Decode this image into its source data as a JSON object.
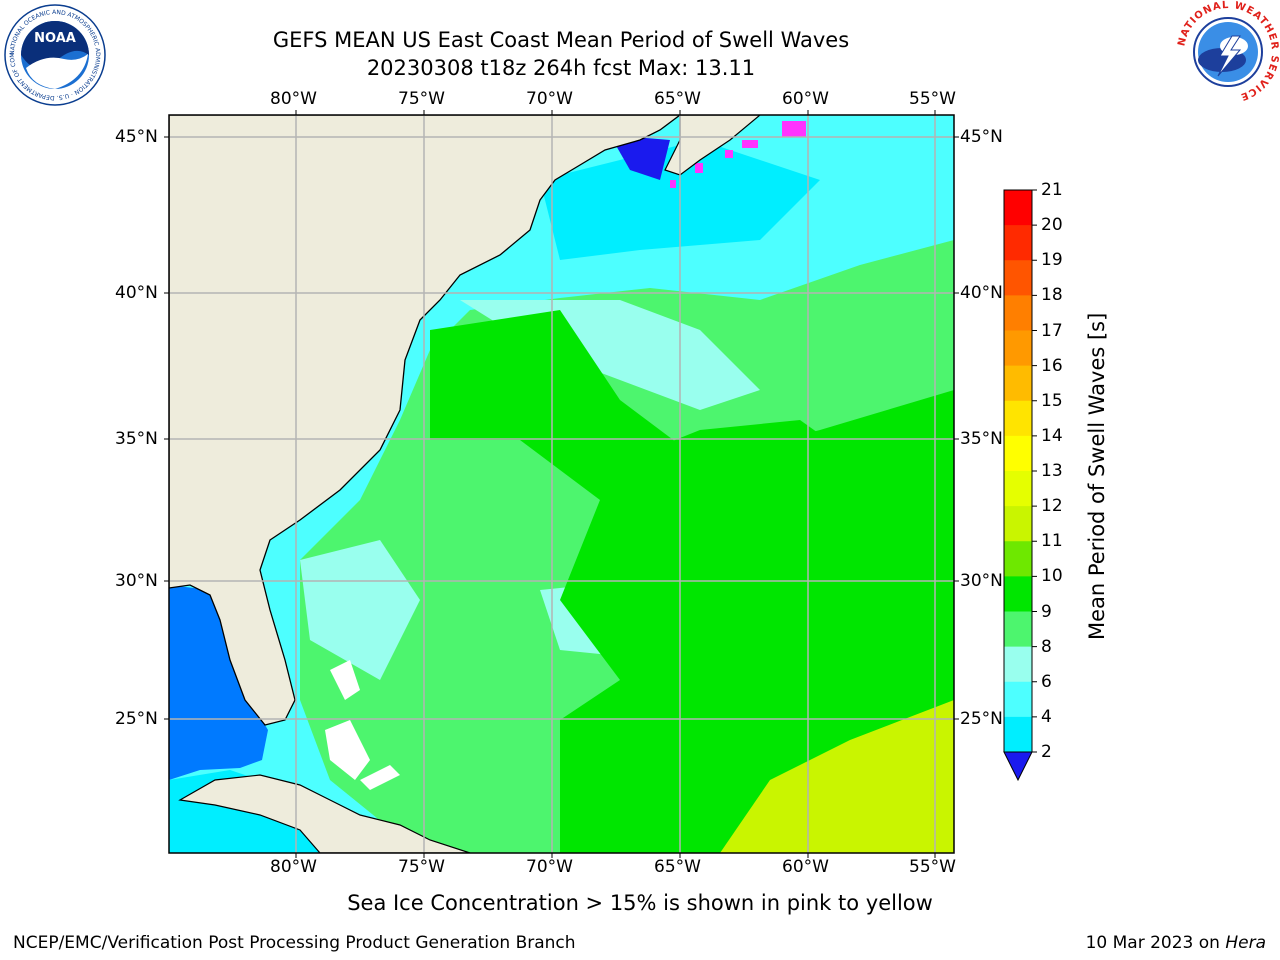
{
  "header": {
    "title_line1": "GEFS MEAN US East Coast Mean Period of Swell Waves",
    "title_line2": "20230308 t18z 264h fcst   Max: 13.11"
  },
  "map": {
    "lon_labels": [
      "80°W",
      "75°W",
      "70°W",
      "65°W",
      "60°W",
      "55°W"
    ],
    "lat_labels": [
      "45°N",
      "40°N",
      "35°N",
      "30°N",
      "25°N"
    ],
    "colors": {
      "land": "#eeecdc",
      "border": "#000000",
      "grid": "#b4b4b4"
    }
  },
  "colorbar": {
    "label": "Mean Period of Swell Waves [s]",
    "ticks": [
      "21",
      "20",
      "19",
      "18",
      "17",
      "16",
      "15",
      "14",
      "13",
      "12",
      "11",
      "10",
      "9",
      "8",
      "6",
      "4",
      "2"
    ],
    "colors": [
      "#ff0000",
      "#ff2a00",
      "#ff5500",
      "#ff7f00",
      "#ff9900",
      "#ffbb00",
      "#ffe400",
      "#ffff00",
      "#e5ff00",
      "#c9f500",
      "#6ee800",
      "#00e600",
      "#4df56e",
      "#99ffee",
      "#4dffff",
      "#00eeff",
      "#007aff"
    ],
    "under_color": "#1a1aee"
  },
  "footer": {
    "note": "Sea Ice Concentration > 15% is shown in pink to yellow",
    "left": "NCEP/EMC/Verification Post Processing Product Generation Branch",
    "right_date": "10 Mar 2023 on ",
    "right_host": "Hera"
  },
  "logos": {
    "noaa_text": "NOAA",
    "noaa_ring": "NATIONAL OCEANIC AND ATMOSPHERIC ADMINISTRATION · U.S. DEPARTMENT OF COMMERCE",
    "nws_ring": "NATIONAL WEATHER SERVICE"
  }
}
